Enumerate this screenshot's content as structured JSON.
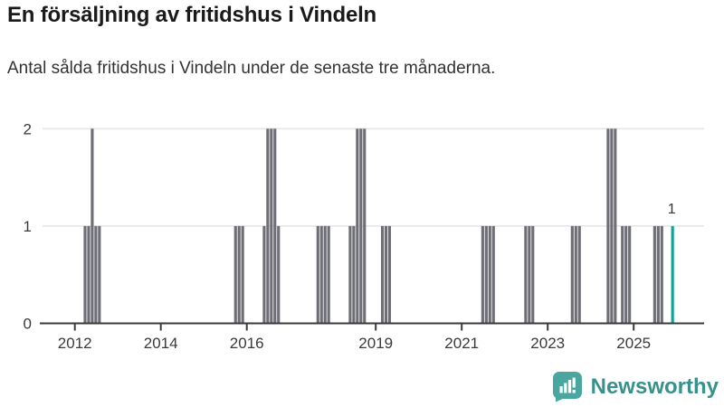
{
  "chart_data": {
    "type": "bar",
    "title": "En försäljning av fritidshus i Vindeln",
    "subtitle": "Antal sålda fritidshus i Vindeln under de senaste tre månaderna.",
    "grid": "horizontal-only",
    "legend": "none",
    "ylim": [
      0,
      2
    ],
    "y_ticks": [
      "0",
      "1",
      "2"
    ],
    "x_ticks": [
      {
        "label": "2012",
        "year": 2012
      },
      {
        "label": "2014",
        "year": 2014
      },
      {
        "label": "2016",
        "year": 2016
      },
      {
        "label": "2019",
        "year": 2019
      },
      {
        "label": "2021",
        "year": 2021
      },
      {
        "label": "2023",
        "year": 2023
      },
      {
        "label": "2025",
        "year": 2025
      }
    ],
    "colors": {
      "bar": "#6e6e76",
      "highlight": "#12a29d",
      "grid": "#e8e8e8",
      "axis": "#3a3a3a",
      "tick_label": "#3a3a3a",
      "annotation": "#333333"
    },
    "annotation": {
      "text": "1"
    },
    "bars": [
      {
        "month": "2012-03",
        "value": 1
      },
      {
        "month": "2012-04",
        "value": 1
      },
      {
        "month": "2012-05",
        "value": 2
      },
      {
        "month": "2012-06",
        "value": 1
      },
      {
        "month": "2012-07",
        "value": 1
      },
      {
        "month": "2015-09",
        "value": 1
      },
      {
        "month": "2015-10",
        "value": 1
      },
      {
        "month": "2015-11",
        "value": 1
      },
      {
        "month": "2016-05",
        "value": 1
      },
      {
        "month": "2016-06",
        "value": 2
      },
      {
        "month": "2016-07",
        "value": 2
      },
      {
        "month": "2016-08",
        "value": 2
      },
      {
        "month": "2016-09",
        "value": 1
      },
      {
        "month": "2017-08",
        "value": 1
      },
      {
        "month": "2017-09",
        "value": 1
      },
      {
        "month": "2017-10",
        "value": 1
      },
      {
        "month": "2017-11",
        "value": 1
      },
      {
        "month": "2018-05",
        "value": 1
      },
      {
        "month": "2018-06",
        "value": 1
      },
      {
        "month": "2018-07",
        "value": 2
      },
      {
        "month": "2018-08",
        "value": 2
      },
      {
        "month": "2018-09",
        "value": 2
      },
      {
        "month": "2019-02",
        "value": 1
      },
      {
        "month": "2019-03",
        "value": 1
      },
      {
        "month": "2019-04",
        "value": 1
      },
      {
        "month": "2021-06",
        "value": 1
      },
      {
        "month": "2021-07",
        "value": 1
      },
      {
        "month": "2021-08",
        "value": 1
      },
      {
        "month": "2021-09",
        "value": 1
      },
      {
        "month": "2022-06",
        "value": 1
      },
      {
        "month": "2022-07",
        "value": 1
      },
      {
        "month": "2022-08",
        "value": 1
      },
      {
        "month": "2023-07",
        "value": 1
      },
      {
        "month": "2023-08",
        "value": 1
      },
      {
        "month": "2023-09",
        "value": 1
      },
      {
        "month": "2024-05",
        "value": 2
      },
      {
        "month": "2024-06",
        "value": 2
      },
      {
        "month": "2024-07",
        "value": 2
      },
      {
        "month": "2024-09",
        "value": 1
      },
      {
        "month": "2024-10",
        "value": 1
      },
      {
        "month": "2024-11",
        "value": 1
      },
      {
        "month": "2025-06",
        "value": 1
      },
      {
        "month": "2025-07",
        "value": 1
      },
      {
        "month": "2025-08",
        "value": 1
      },
      {
        "month": "2025-11",
        "value": 1,
        "highlight": true
      }
    ]
  },
  "branding": {
    "name": "Newsworthy",
    "icon": "newsworthy-speech-bubble-chart-icon",
    "icon_color": "#4aa79f",
    "glyph_color": "#ffffff",
    "text_color": "#38918c"
  }
}
